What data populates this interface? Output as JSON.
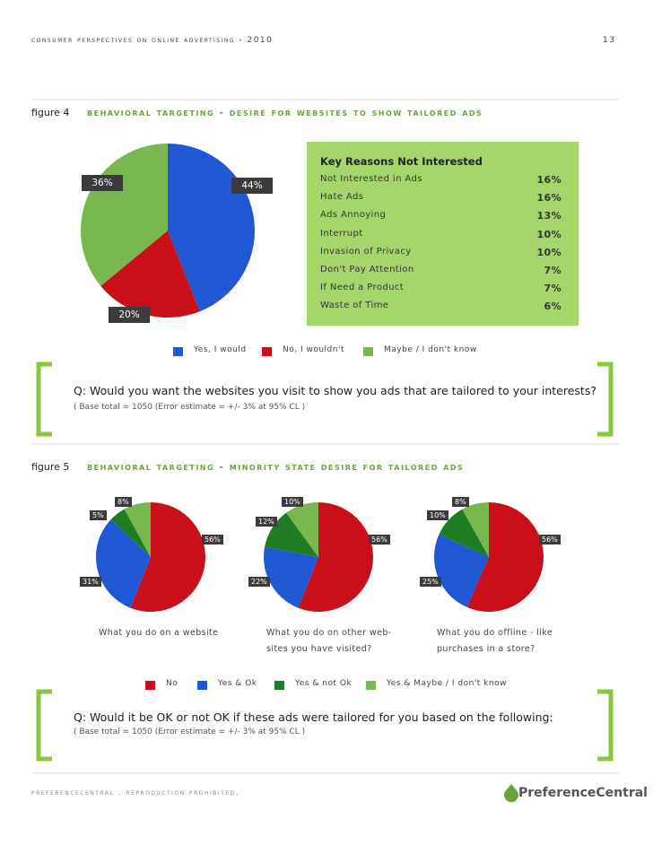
{
  "header": {
    "title": "consumer perspectives on online advertising - 2010",
    "page": "13"
  },
  "chart_data": [
    {
      "type": "pie",
      "figure": "figure 4",
      "title": "behavioral targeting - desire for websites to show tailored ads",
      "categories": [
        "Yes, I would",
        "No, I wouldn't",
        "Maybe / I don't know"
      ],
      "values": [
        44,
        20,
        36
      ],
      "value_labels": [
        "44%",
        "20%",
        "36%"
      ],
      "colors": [
        "#1f57d4",
        "#c80f1a",
        "#79b84f"
      ]
    },
    {
      "type": "pie",
      "figure": "figure 5",
      "title": "behavioral targeting - minority state desire for tailored ads",
      "categories": [
        "No",
        "Yes & Ok",
        "Yes & not Ok",
        "Yes & Maybe / I don't know"
      ],
      "caption": [
        "What you do on a website"
      ],
      "values": [
        56,
        31,
        5,
        8
      ],
      "value_labels": [
        "56%",
        "31%",
        "5%",
        "8%"
      ],
      "colors": [
        "#c80f1a",
        "#1f57d4",
        "#1e7d22",
        "#79b84f"
      ]
    },
    {
      "type": "pie",
      "caption": [
        "What you do on other web-",
        "sites you have visited?"
      ],
      "values": [
        56,
        22,
        12,
        10
      ],
      "value_labels": [
        "56%",
        "22%",
        "12%",
        "10%"
      ],
      "colors": [
        "#c80f1a",
        "#1f57d4",
        "#1e7d22",
        "#79b84f"
      ]
    },
    {
      "type": "pie",
      "caption": [
        "What you do offline - like",
        "purchases in a store?"
      ],
      "values": [
        56,
        25,
        10,
        8
      ],
      "value_labels": [
        "56%",
        "25%",
        "10%",
        "8%"
      ],
      "colors": [
        "#c80f1a",
        "#1f57d4",
        "#1e7d22",
        "#79b84f"
      ]
    }
  ],
  "reasons_box": {
    "title": "Key Reasons Not Interested",
    "rows": [
      [
        "Not Interested in Ads",
        "16%"
      ],
      [
        "Hate Ads",
        "16%"
      ],
      [
        "Ads Annoying",
        "13%"
      ],
      [
        "Interrupt",
        "10%"
      ],
      [
        "Invasion of Privacy",
        "10%"
      ],
      [
        "Don't Pay Attention",
        "7%"
      ],
      [
        "If Need a Product",
        "7%"
      ],
      [
        "Waste of Time",
        "6%"
      ]
    ]
  },
  "questions": [
    {
      "question": "Q:  Would you want the websites you visit to show you ads that are tailored to your interests?",
      "base": "( Base total = 1050  (Error  estimate = +/- 3% at 95% CL )"
    },
    {
      "question": "Q:  Would it be OK or not OK if these ads were tailored for you based on the following:",
      "base": "( Base total = 1050  (Error  estimate = +/- 3% at 95% CL )"
    }
  ],
  "footer": {
    "note": "preferencecentral . reproduction prohibited.",
    "brand": "PreferenceCentral"
  }
}
